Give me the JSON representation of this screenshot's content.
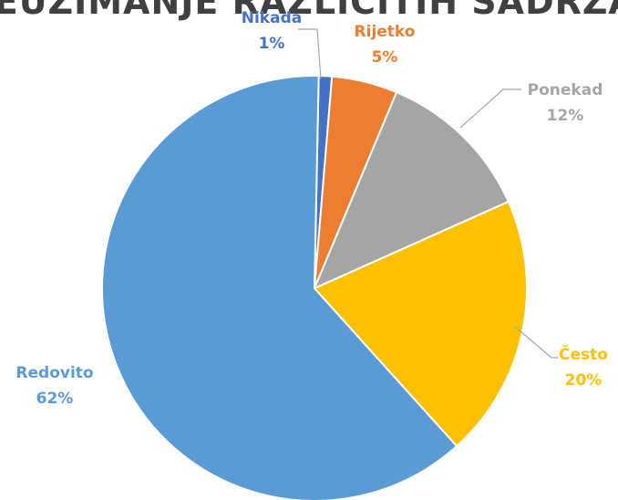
{
  "chart_data": {
    "type": "pie",
    "title": "PREUZIMANJE RAZLIČITIH SADRŽAJA",
    "slices": [
      {
        "label": "Nikada",
        "value": 1,
        "display": "1%",
        "color": "#4472c4"
      },
      {
        "label": "Rijetko",
        "value": 5,
        "display": "5%",
        "color": "#ed7d31"
      },
      {
        "label": "Ponekad",
        "value": 12,
        "display": "12%",
        "color": "#a5a5a5"
      },
      {
        "label": "Često",
        "value": 20,
        "display": "20%",
        "color": "#ffc000"
      },
      {
        "label": "Redovito",
        "value": 62,
        "display": "62%",
        "color": "#5b9bd5"
      }
    ]
  }
}
